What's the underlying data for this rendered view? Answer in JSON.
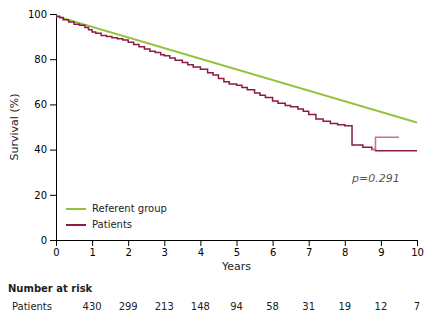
{
  "chart_data": {
    "type": "line",
    "xlabel": "Years",
    "ylabel": "Survival (%)",
    "xlim": [
      0,
      10
    ],
    "ylim": [
      0,
      100
    ],
    "xticks": [
      0,
      1,
      2,
      3,
      4,
      5,
      6,
      7,
      8,
      9,
      10
    ],
    "yticks": [
      0,
      20,
      40,
      60,
      80,
      100
    ],
    "grid": false,
    "legend": "lower left",
    "series": [
      {
        "name": "Referent group",
        "color": "#96c13c",
        "x": [
          0,
          10
        ],
        "values": [
          99,
          52
        ]
      },
      {
        "name": "Patients",
        "type": "step",
        "color": "#8b1a4a",
        "x": [
          0,
          0.1,
          0.2,
          0.35,
          0.5,
          0.65,
          0.8,
          0.9,
          1.0,
          1.1,
          1.25,
          1.4,
          1.55,
          1.7,
          1.85,
          2.0,
          2.15,
          2.3,
          2.45,
          2.6,
          2.75,
          2.9,
          3.0,
          3.15,
          3.3,
          3.5,
          3.65,
          3.8,
          4.0,
          4.2,
          4.35,
          4.5,
          4.65,
          4.8,
          5.0,
          5.15,
          5.3,
          5.5,
          5.65,
          5.8,
          6.0,
          6.15,
          6.35,
          6.5,
          6.7,
          6.85,
          7.0,
          7.2,
          7.4,
          7.6,
          7.8,
          8.0,
          8.2,
          8.5,
          8.75,
          8.85,
          9.0,
          10.0
        ],
        "values": [
          99,
          98.5,
          97.5,
          96.5,
          95.5,
          95,
          94,
          93,
          92,
          91.5,
          90.5,
          90,
          89.5,
          89,
          88.5,
          87.5,
          86.5,
          85.5,
          84.5,
          83.5,
          83,
          82,
          81.5,
          80.5,
          79.5,
          78.5,
          77.5,
          76.5,
          75.5,
          74,
          73,
          71.5,
          70,
          69,
          68.5,
          67.5,
          66.5,
          65,
          64,
          63,
          61.5,
          60.5,
          59.5,
          59,
          58,
          57,
          55.5,
          53.5,
          52.5,
          51.5,
          51,
          50.5,
          42,
          41,
          40,
          39.5,
          39.5,
          39.5
        ]
      },
      {
        "type": "step",
        "color": "#c87090",
        "x": [
          8.75,
          8.85,
          9.5
        ],
        "values": [
          40,
          45.5,
          45.5
        ]
      }
    ],
    "annotations": [
      {
        "text": "p=0.291",
        "x": 8.2,
        "y": 27
      }
    ],
    "risk_table": {
      "title": "Number at risk",
      "rows": [
        {
          "name": "Patients",
          "x": [
            1,
            2,
            3,
            4,
            5,
            6,
            7,
            8,
            9,
            10
          ],
          "values": [
            430,
            299,
            213,
            148,
            94,
            58,
            31,
            19,
            12,
            7
          ]
        }
      ]
    }
  }
}
